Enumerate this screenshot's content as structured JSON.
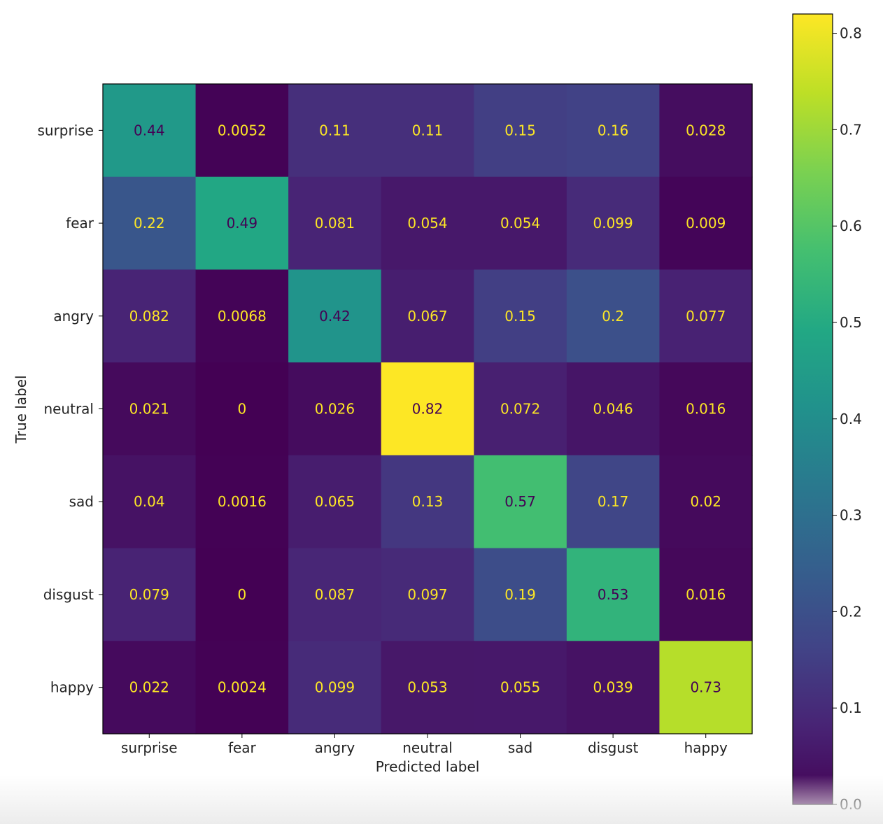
{
  "chart_data": {
    "type": "heatmap",
    "title": "",
    "xlabel": "Predicted label",
    "ylabel": "True label",
    "x_categories": [
      "surprise",
      "fear",
      "angry",
      "neutral",
      "sad",
      "disgust",
      "happy"
    ],
    "y_categories": [
      "surprise",
      "fear",
      "angry",
      "neutral",
      "sad",
      "disgust",
      "happy"
    ],
    "values": [
      [
        0.44,
        0.0052,
        0.11,
        0.11,
        0.15,
        0.16,
        0.028
      ],
      [
        0.22,
        0.49,
        0.081,
        0.054,
        0.054,
        0.099,
        0.009
      ],
      [
        0.082,
        0.0068,
        0.42,
        0.067,
        0.15,
        0.2,
        0.077
      ],
      [
        0.021,
        0,
        0.026,
        0.82,
        0.072,
        0.046,
        0.016
      ],
      [
        0.04,
        0.0016,
        0.065,
        0.13,
        0.57,
        0.17,
        0.02
      ],
      [
        0.079,
        0,
        0.087,
        0.097,
        0.19,
        0.53,
        0.016
      ],
      [
        0.022,
        0.0024,
        0.099,
        0.053,
        0.055,
        0.039,
        0.73
      ]
    ],
    "labels": [
      [
        "0.44",
        "0.0052",
        "0.11",
        "0.11",
        "0.15",
        "0.16",
        "0.028"
      ],
      [
        "0.22",
        "0.49",
        "0.081",
        "0.054",
        "0.054",
        "0.099",
        "0.009"
      ],
      [
        "0.082",
        "0.0068",
        "0.42",
        "0.067",
        "0.15",
        "0.2",
        "0.077"
      ],
      [
        "0.021",
        "0",
        "0.026",
        "0.82",
        "0.072",
        "0.046",
        "0.016"
      ],
      [
        "0.04",
        "0.0016",
        "0.065",
        "0.13",
        "0.57",
        "0.17",
        "0.02"
      ],
      [
        "0.079",
        "0",
        "0.087",
        "0.097",
        "0.19",
        "0.53",
        "0.016"
      ],
      [
        "0.022",
        "0.0024",
        "0.099",
        "0.053",
        "0.055",
        "0.039",
        "0.73"
      ]
    ],
    "colormap": "viridis",
    "colorbar": {
      "min": 0.0,
      "max": 0.82,
      "ticks": [
        0.0,
        0.1,
        0.2,
        0.3,
        0.4,
        0.5,
        0.6,
        0.7,
        0.8
      ],
      "tick_labels": [
        "0.0",
        "0.1",
        "0.2",
        "0.3",
        "0.4",
        "0.5",
        "0.6",
        "0.7",
        "0.8"
      ]
    },
    "grid": false,
    "text_colors": {
      "light": "#fde725",
      "dark": "#440154"
    }
  }
}
